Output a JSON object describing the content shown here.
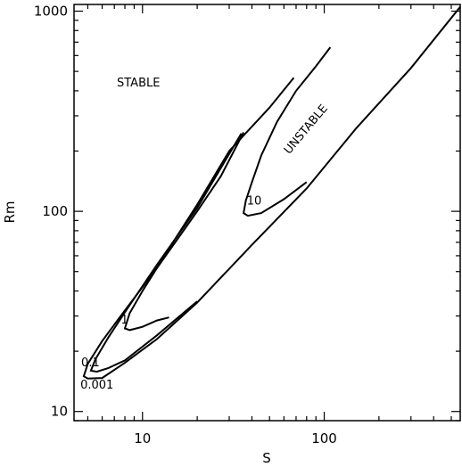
{
  "chart_data": {
    "type": "line",
    "title": "",
    "xlabel": "S",
    "ylabel": "Rm",
    "xscale": "log",
    "yscale": "log",
    "xlim": [
      4.2,
      560
    ],
    "ylim": [
      9.0,
      1080
    ],
    "xticks": [
      {
        "value": 10,
        "label": "10"
      },
      {
        "value": 100,
        "label": "100"
      }
    ],
    "yticks": [
      {
        "value": 10,
        "label": "10"
      },
      {
        "value": 100,
        "label": "100"
      },
      {
        "value": 1000,
        "label": "1000"
      }
    ],
    "grid": false,
    "region_labels": [
      {
        "text": "STABLE",
        "x": 9.5,
        "y": 420,
        "rotation": 0
      },
      {
        "text": "UNSTABLE",
        "x": 82,
        "y": 250,
        "rotation": -50
      }
    ],
    "series": [
      {
        "label": "0.001",
        "label_at": {
          "x": 4.55,
          "y": 13.0
        },
        "upper": [
          [
            4.75,
            15.0
          ],
          [
            5.0,
            17.3
          ],
          [
            6.0,
            22.5
          ],
          [
            8.0,
            32.0
          ],
          [
            12.0,
            52.0
          ],
          [
            20.0,
            100.0
          ],
          [
            27.0,
            150.0
          ],
          [
            36.0,
            248.0
          ]
        ],
        "lower": [
          [
            4.75,
            15.0
          ],
          [
            5.0,
            14.6
          ],
          [
            6.0,
            14.7
          ],
          [
            8.0,
            17.5
          ],
          [
            12.0,
            23.0
          ],
          [
            20.0,
            35.0
          ],
          [
            40.0,
            68.0
          ],
          [
            80.0,
            130.0
          ],
          [
            150.0,
            260.0
          ],
          [
            300.0,
            520.0
          ],
          [
            560.0,
            1050.0
          ]
        ]
      },
      {
        "label": "0.1",
        "label_at": {
          "x": 4.6,
          "y": 16.8
        },
        "upper": [
          [
            5.2,
            16.0
          ],
          [
            5.5,
            18.2
          ],
          [
            6.5,
            23.5
          ],
          [
            8.5,
            34.0
          ],
          [
            12.0,
            54.0
          ],
          [
            20.0,
            104.0
          ],
          [
            35.0,
            245.0
          ]
        ],
        "lower": [
          [
            5.2,
            16.0
          ],
          [
            5.6,
            15.8
          ],
          [
            6.5,
            16.5
          ],
          [
            8.0,
            18.0
          ],
          [
            12.0,
            24.0
          ],
          [
            20.0,
            35.5
          ]
        ]
      },
      {
        "label": "1",
        "label_at": {
          "x": 7.6,
          "y": 27.5
        },
        "upper": [
          [
            8.0,
            26.0
          ],
          [
            8.5,
            31.0
          ],
          [
            10.0,
            40.0
          ],
          [
            12.0,
            52.0
          ],
          [
            15.0,
            72.0
          ],
          [
            20.0,
            108.0
          ],
          [
            30.0,
            200.0
          ],
          [
            50.0,
            330.0
          ],
          [
            68.0,
            465.0
          ]
        ],
        "lower": [
          [
            8.0,
            26.0
          ],
          [
            8.5,
            25.5
          ],
          [
            10.0,
            26.5
          ],
          [
            12.0,
            28.5
          ],
          [
            14.0,
            29.5
          ]
        ]
      },
      {
        "label": "10",
        "label_at": {
          "x": 37.5,
          "y": 108.0
        },
        "upper": [
          [
            36.0,
            98.0
          ],
          [
            37.0,
            113.0
          ],
          [
            40.0,
            140.0
          ],
          [
            45.0,
            190.0
          ],
          [
            55.0,
            280.0
          ],
          [
            70.0,
            400.0
          ],
          [
            90.0,
            530.0
          ],
          [
            108.0,
            660.0
          ]
        ],
        "lower": [
          [
            36.0,
            98.0
          ],
          [
            38.0,
            95.0
          ],
          [
            45.0,
            98.0
          ],
          [
            60.0,
            115.0
          ],
          [
            80.0,
            140.0
          ]
        ]
      }
    ]
  }
}
